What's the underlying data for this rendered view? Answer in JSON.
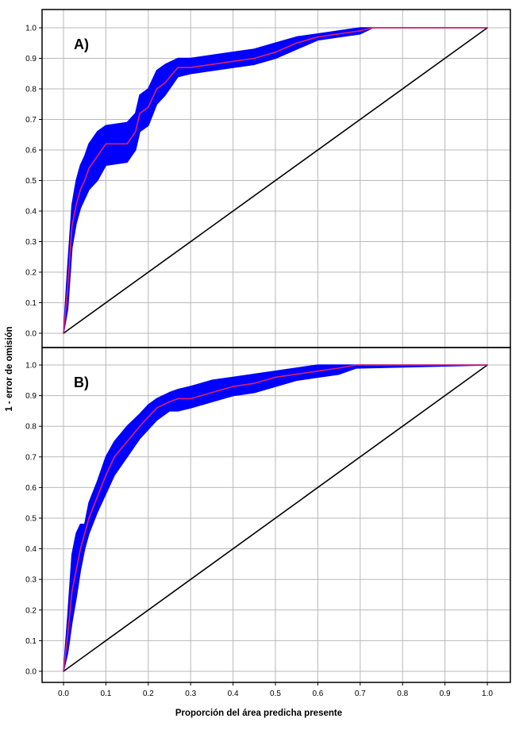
{
  "figure": {
    "xlabel": "Proporción del área predicha presente",
    "ylabel": "1 - error de omisión"
  },
  "chart_data": [
    {
      "type": "line",
      "panel_label": "A)",
      "x_ticks": [
        "0.0",
        "0.1",
        "0.2",
        "0.3",
        "0.4",
        "0.5",
        "0.6",
        "0.7",
        "0.8",
        "0.9",
        "1.0"
      ],
      "y_ticks": [
        "0.0",
        "0.1",
        "0.2",
        "0.3",
        "0.4",
        "0.5",
        "0.6",
        "0.7",
        "0.8",
        "0.9",
        "1.0"
      ],
      "xlim": [
        0,
        1
      ],
      "ylim": [
        0,
        1
      ],
      "grid": true,
      "colors": {
        "mean": "#e0206a",
        "band": "#0000ff",
        "reference": "#000000"
      },
      "series": [
        {
          "role": "mean",
          "x": [
            0,
            0.01,
            0.02,
            0.03,
            0.04,
            0.05,
            0.06,
            0.08,
            0.1,
            0.15,
            0.17,
            0.18,
            0.2,
            0.22,
            0.24,
            0.27,
            0.3,
            0.35,
            0.4,
            0.45,
            0.5,
            0.55,
            0.6,
            0.65,
            0.7,
            0.73,
            1.0
          ],
          "y": [
            0,
            0.15,
            0.35,
            0.42,
            0.47,
            0.5,
            0.54,
            0.58,
            0.62,
            0.62,
            0.66,
            0.72,
            0.74,
            0.8,
            0.82,
            0.87,
            0.87,
            0.88,
            0.89,
            0.9,
            0.92,
            0.95,
            0.97,
            0.98,
            0.99,
            1.0,
            1.0
          ]
        },
        {
          "role": "band_upper",
          "x": [
            0,
            0.01,
            0.02,
            0.03,
            0.04,
            0.05,
            0.06,
            0.08,
            0.1,
            0.15,
            0.17,
            0.18,
            0.2,
            0.22,
            0.24,
            0.27,
            0.3,
            0.35,
            0.4,
            0.45,
            0.5,
            0.55,
            0.6,
            0.65,
            0.7,
            0.73,
            1.0
          ],
          "y": [
            0,
            0.22,
            0.42,
            0.5,
            0.55,
            0.58,
            0.62,
            0.66,
            0.68,
            0.69,
            0.72,
            0.78,
            0.8,
            0.86,
            0.88,
            0.9,
            0.9,
            0.91,
            0.92,
            0.93,
            0.95,
            0.97,
            0.98,
            0.99,
            1.0,
            1.0,
            1.0
          ]
        },
        {
          "role": "band_lower",
          "x": [
            0,
            0.01,
            0.02,
            0.03,
            0.04,
            0.05,
            0.06,
            0.08,
            0.1,
            0.15,
            0.17,
            0.18,
            0.2,
            0.22,
            0.24,
            0.27,
            0.3,
            0.35,
            0.4,
            0.45,
            0.5,
            0.55,
            0.6,
            0.65,
            0.7,
            0.73,
            1.0
          ],
          "y": [
            0,
            0.08,
            0.28,
            0.36,
            0.41,
            0.44,
            0.47,
            0.5,
            0.55,
            0.56,
            0.6,
            0.66,
            0.68,
            0.75,
            0.78,
            0.84,
            0.85,
            0.86,
            0.87,
            0.88,
            0.9,
            0.93,
            0.96,
            0.97,
            0.98,
            1.0,
            1.0
          ]
        },
        {
          "role": "reference",
          "x": [
            0,
            1
          ],
          "y": [
            0,
            1
          ]
        }
      ]
    },
    {
      "type": "line",
      "panel_label": "B)",
      "x_ticks": [
        "0.0",
        "0.1",
        "0.2",
        "0.3",
        "0.4",
        "0.5",
        "0.6",
        "0.7",
        "0.8",
        "0.9",
        "1.0"
      ],
      "y_ticks": [
        "0.0",
        "0.1",
        "0.2",
        "0.3",
        "0.4",
        "0.5",
        "0.6",
        "0.7",
        "0.8",
        "0.9",
        "1.0"
      ],
      "xlim": [
        0,
        1
      ],
      "ylim": [
        0,
        1
      ],
      "grid": true,
      "colors": {
        "mean": "#e0206a",
        "band": "#0000ff",
        "reference": "#000000"
      },
      "series": [
        {
          "role": "mean",
          "x": [
            0,
            0.01,
            0.02,
            0.03,
            0.04,
            0.05,
            0.06,
            0.08,
            0.1,
            0.12,
            0.15,
            0.18,
            0.2,
            0.22,
            0.25,
            0.27,
            0.3,
            0.35,
            0.4,
            0.45,
            0.5,
            0.55,
            0.6,
            0.65,
            0.69,
            1.0
          ],
          "y": [
            0,
            0.12,
            0.26,
            0.33,
            0.4,
            0.45,
            0.5,
            0.57,
            0.64,
            0.7,
            0.75,
            0.8,
            0.83,
            0.86,
            0.88,
            0.89,
            0.89,
            0.91,
            0.93,
            0.94,
            0.96,
            0.97,
            0.98,
            0.99,
            1.0,
            1.0
          ]
        },
        {
          "role": "band_upper",
          "x": [
            0,
            0.01,
            0.02,
            0.03,
            0.04,
            0.05,
            0.06,
            0.08,
            0.1,
            0.12,
            0.15,
            0.18,
            0.2,
            0.22,
            0.25,
            0.27,
            0.3,
            0.35,
            0.4,
            0.45,
            0.5,
            0.55,
            0.6,
            0.65,
            0.69,
            1.0
          ],
          "y": [
            0,
            0.18,
            0.38,
            0.45,
            0.48,
            0.48,
            0.55,
            0.62,
            0.7,
            0.75,
            0.8,
            0.84,
            0.87,
            0.89,
            0.91,
            0.92,
            0.93,
            0.95,
            0.96,
            0.97,
            0.98,
            0.99,
            1.0,
            1.0,
            1.0,
            1.0
          ]
        },
        {
          "role": "band_lower",
          "x": [
            0,
            0.01,
            0.02,
            0.03,
            0.04,
            0.05,
            0.06,
            0.08,
            0.1,
            0.12,
            0.15,
            0.18,
            0.2,
            0.22,
            0.25,
            0.27,
            0.3,
            0.35,
            0.4,
            0.45,
            0.5,
            0.55,
            0.6,
            0.65,
            0.69,
            1.0
          ],
          "y": [
            0,
            0.06,
            0.16,
            0.24,
            0.33,
            0.4,
            0.45,
            0.52,
            0.58,
            0.64,
            0.7,
            0.76,
            0.79,
            0.82,
            0.85,
            0.85,
            0.86,
            0.88,
            0.9,
            0.91,
            0.93,
            0.95,
            0.96,
            0.97,
            0.99,
            1.0
          ]
        },
        {
          "role": "reference",
          "x": [
            0,
            1
          ],
          "y": [
            0,
            1
          ]
        }
      ]
    }
  ]
}
